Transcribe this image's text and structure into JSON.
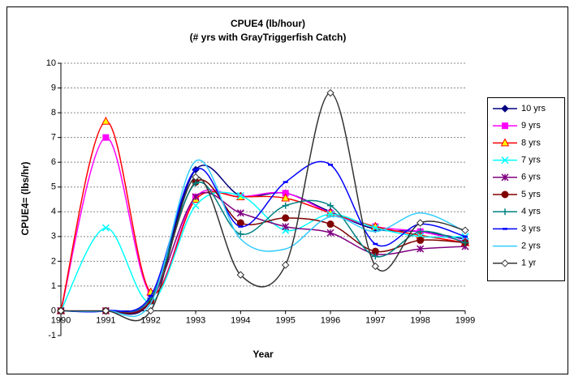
{
  "chart_data": {
    "type": "line",
    "title": "CPUE4 (lb/hour)",
    "subtitle": "(# yrs with GrayTriggerfish Catch)",
    "x_label": "Year",
    "y_label": "CPUE4= (lbs/hr)",
    "x": [
      1990,
      1991,
      1992,
      1993,
      1994,
      1995,
      1996,
      1997,
      1998,
      1999
    ],
    "xlim": [
      1990,
      1999
    ],
    "xticks": [
      1990,
      1991,
      1992,
      1993,
      1994,
      1995,
      1996,
      1997,
      1998,
      1999
    ],
    "ylim": [
      -1,
      10
    ],
    "yticks": [
      -1,
      0,
      1,
      2,
      3,
      4,
      5,
      6,
      7,
      8,
      9,
      10
    ],
    "grid": true,
    "smooth": true,
    "series": [
      {
        "name": "10 yrs",
        "color": "#000080",
        "marker": "diamond",
        "marker_fill": "#000080",
        "values": [
          0,
          0,
          0.4,
          5.7,
          4.65,
          4.75,
          4.0,
          3.3,
          3.2,
          2.9
        ]
      },
      {
        "name": "9 yrs",
        "color": "#FF00FF",
        "marker": "square",
        "marker_fill": "#FF00FF",
        "values": [
          0,
          7.0,
          0.7,
          4.6,
          4.6,
          4.75,
          3.95,
          3.4,
          3.2,
          2.8
        ]
      },
      {
        "name": "8 yrs",
        "color": "#FF0000",
        "marker": "triangle",
        "marker_fill": "#FFFF00",
        "values": [
          0,
          7.65,
          0.75,
          4.5,
          4.6,
          4.55,
          3.95,
          3.4,
          3.05,
          2.75
        ]
      },
      {
        "name": "7 yrs",
        "color": "#00FFFF",
        "marker": "x",
        "marker_fill": "#00FFFF",
        "values": [
          0,
          3.35,
          0.35,
          4.25,
          4.65,
          3.25,
          3.9,
          3.35,
          3.0,
          3.0
        ]
      },
      {
        "name": "6 yrs",
        "color": "#800080",
        "marker": "star",
        "marker_fill": "#800080",
        "values": [
          0,
          0,
          0.4,
          4.6,
          3.95,
          3.4,
          3.15,
          2.3,
          2.5,
          2.6
        ]
      },
      {
        "name": "5 yrs",
        "color": "#800000",
        "marker": "circle",
        "marker_fill": "#800000",
        "values": [
          0,
          0,
          0.4,
          5.2,
          3.55,
          3.75,
          3.5,
          2.4,
          2.85,
          2.75
        ]
      },
      {
        "name": "4 yrs",
        "color": "#008080",
        "marker": "plus",
        "marker_fill": "#008080",
        "values": [
          0,
          0,
          0.5,
          5.15,
          3.1,
          4.25,
          4.25,
          2.2,
          3.2,
          2.75
        ]
      },
      {
        "name": "3 yrs",
        "color": "#0000FF",
        "marker": "dash",
        "marker_fill": "#0000FF",
        "values": [
          0,
          0,
          0.6,
          5.7,
          3.4,
          5.2,
          5.9,
          2.7,
          3.5,
          3.0
        ]
      },
      {
        "name": "2 yrs",
        "color": "#33CCFF",
        "marker": "none",
        "marker_fill": "#33CCFF",
        "values": [
          0,
          0,
          0.3,
          6.05,
          2.9,
          2.5,
          3.8,
          3.2,
          3.95,
          3.2
        ]
      },
      {
        "name": "1 yr",
        "color": "#333333",
        "marker": "diamond",
        "marker_fill": "#FFFFFF",
        "values": [
          0,
          0,
          0,
          5.4,
          1.45,
          1.85,
          8.8,
          1.8,
          3.55,
          3.25
        ]
      }
    ]
  }
}
